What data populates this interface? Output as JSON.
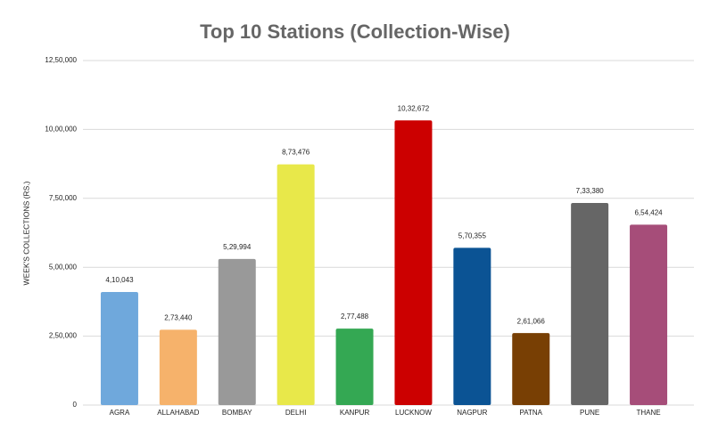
{
  "chart_data": {
    "type": "bar",
    "title": "Top 10 Stations (Collection-Wise)",
    "y_label": "WEEK'S COLLECTIONS (RS.)",
    "categories": [
      "AGRA",
      "ALLAHABAD",
      "BOMBAY",
      "DELHI",
      "KANPUR",
      "LUCKNOW",
      "NAGPUR",
      "PATNA",
      "PUNE",
      "THANE"
    ],
    "values": [
      410043,
      273440,
      529994,
      873476,
      277488,
      1032672,
      570355,
      261066,
      733380,
      654424
    ],
    "value_labels": [
      "4,10,043",
      "2,73,440",
      "5,29,994",
      "8,73,476",
      "2,77,488",
      "10,32,672",
      "5,70,355",
      "2,61,066",
      "7,33,380",
      "6,54,424"
    ],
    "colors": [
      "#6fa8dc",
      "#f6b26b",
      "#999999",
      "#e8e84a",
      "#34a853",
      "#cc0000",
      "#0b5394",
      "#783f04",
      "#666666",
      "#a64d79"
    ],
    "ylim": [
      0,
      1250000
    ],
    "yticks": [
      0,
      {
        "value": 250000,
        "label": "2,50,000"
      },
      {
        "value": 500000,
        "label": "5,00,000"
      },
      {
        "value": 750000,
        "label": "7,50,000"
      },
      {
        "value": 1000000,
        "label": "10,00,000"
      },
      {
        "value": 1250000,
        "label": "12,50,000"
      }
    ],
    "grid": true
  }
}
